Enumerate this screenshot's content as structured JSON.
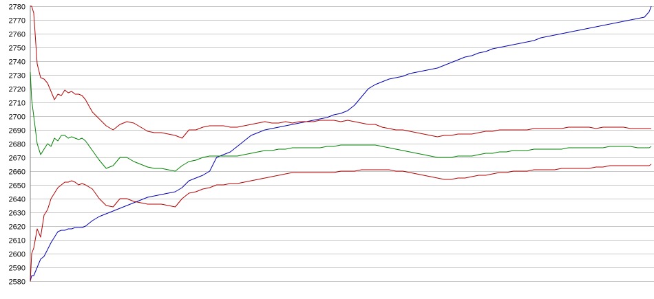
{
  "chart_data": {
    "type": "line",
    "title": "",
    "xlabel": "",
    "ylabel": "",
    "ylim": [
      2580,
      2780
    ],
    "yticks": [
      2580,
      2590,
      2600,
      2610,
      2620,
      2630,
      2640,
      2650,
      2660,
      2670,
      2680,
      2690,
      2700,
      2710,
      2720,
      2730,
      2740,
      2750,
      2760,
      2770,
      2780
    ],
    "grid": true,
    "legend": "none",
    "x": [
      0,
      2,
      5,
      10,
      15,
      20,
      25,
      30,
      35,
      40,
      45,
      50,
      55,
      60,
      65,
      70,
      75,
      80,
      90,
      100,
      110,
      120,
      130,
      140,
      150,
      160,
      170,
      180,
      190,
      200,
      210,
      220,
      230,
      240,
      250,
      260,
      270,
      280,
      290,
      300,
      310,
      320,
      330,
      340,
      350,
      360,
      370,
      380,
      390,
      400,
      410,
      420,
      430,
      440,
      450,
      460,
      470,
      480,
      490,
      500,
      510,
      520,
      530,
      540,
      550,
      560,
      570,
      580,
      590,
      600,
      610,
      620,
      630,
      640,
      650,
      660,
      670,
      680,
      690,
      700,
      710,
      720,
      730,
      740,
      750,
      760,
      770,
      780,
      790,
      800,
      810,
      820,
      830,
      840,
      850,
      860,
      870,
      880,
      890,
      897,
      900
    ],
    "series": [
      {
        "color": "#0000b4",
        "values": [
          2580,
          2584,
          2584,
          2590,
          2596,
          2598,
          2603,
          2608,
          2612,
          2616,
          2617,
          2617,
          2618,
          2618,
          2619,
          2619,
          2619,
          2620,
          2624,
          2627,
          2629,
          2631,
          2633,
          2635,
          2637,
          2639,
          2641,
          2642,
          2643,
          2644,
          2645,
          2648,
          2653,
          2655,
          2657,
          2660,
          2670,
          2672,
          2674,
          2678,
          2682,
          2686,
          2688,
          2690,
          2691,
          2692,
          2693,
          2694,
          2695,
          2696,
          2697,
          2698,
          2699,
          2701,
          2702,
          2704,
          2708,
          2714,
          2720,
          2723,
          2725,
          2727,
          2728,
          2729,
          2731,
          2732,
          2733,
          2734,
          2735,
          2737,
          2739,
          2741,
          2743,
          2744,
          2746,
          2747,
          2749,
          2750,
          2751,
          2752,
          2753,
          2754,
          2755,
          2757,
          2758,
          2759,
          2760,
          2761,
          2762,
          2763,
          2764,
          2765,
          2766,
          2767,
          2768,
          2769,
          2770,
          2771,
          2772,
          2776,
          2780
        ]
      },
      {
        "color": "#b40000",
        "values": [
          2780,
          2780,
          2775,
          2738,
          2728,
          2727,
          2724,
          2718,
          2712,
          2716,
          2715,
          2719,
          2717,
          2718,
          2716,
          2716,
          2715,
          2712,
          2703,
          2698,
          2693,
          2690,
          2694,
          2696,
          2695,
          2692,
          2689,
          2688,
          2688,
          2687,
          2686,
          2684,
          2690,
          2690,
          2692,
          2693,
          2693,
          2693,
          2692,
          2692,
          2693,
          2694,
          2695,
          2696,
          2695,
          2695,
          2696,
          2695,
          2696,
          2696,
          2696,
          2697,
          2697,
          2697,
          2696,
          2697,
          2696,
          2695,
          2694,
          2694,
          2692,
          2691,
          2690,
          2690,
          2689,
          2688,
          2687,
          2686,
          2685,
          2686,
          2686,
          2687,
          2687,
          2687,
          2688,
          2689,
          2689,
          2690,
          2690,
          2690,
          2690,
          2690,
          2691,
          2691,
          2691,
          2691,
          2691,
          2692,
          2692,
          2692,
          2692,
          2691,
          2692,
          2692,
          2692,
          2692,
          2691,
          2691,
          2691,
          2691,
          2691
        ]
      },
      {
        "color": "#008200",
        "values": [
          2732,
          2712,
          2700,
          2680,
          2672,
          2676,
          2680,
          2678,
          2684,
          2682,
          2686,
          2686,
          2684,
          2685,
          2684,
          2683,
          2684,
          2682,
          2675,
          2668,
          2662,
          2664,
          2670,
          2670,
          2667,
          2665,
          2663,
          2662,
          2662,
          2661,
          2660,
          2664,
          2667,
          2668,
          2670,
          2671,
          2671,
          2671,
          2671,
          2671,
          2672,
          2673,
          2674,
          2675,
          2675,
          2676,
          2676,
          2677,
          2677,
          2677,
          2677,
          2677,
          2678,
          2678,
          2679,
          2679,
          2679,
          2679,
          2679,
          2679,
          2678,
          2677,
          2676,
          2675,
          2674,
          2673,
          2672,
          2671,
          2670,
          2670,
          2670,
          2671,
          2671,
          2671,
          2672,
          2673,
          2673,
          2674,
          2674,
          2675,
          2675,
          2675,
          2676,
          2676,
          2676,
          2676,
          2676,
          2677,
          2677,
          2677,
          2677,
          2677,
          2677,
          2678,
          2678,
          2678,
          2678,
          2677,
          2677,
          2677,
          2678
        ]
      },
      {
        "color": "#b40000",
        "values": [
          2580,
          2600,
          2604,
          2618,
          2612,
          2628,
          2632,
          2640,
          2644,
          2648,
          2650,
          2652,
          2652,
          2653,
          2652,
          2650,
          2651,
          2650,
          2647,
          2640,
          2635,
          2634,
          2640,
          2640,
          2638,
          2637,
          2636,
          2636,
          2636,
          2635,
          2634,
          2640,
          2644,
          2645,
          2647,
          2648,
          2650,
          2650,
          2651,
          2651,
          2652,
          2653,
          2654,
          2655,
          2656,
          2657,
          2658,
          2659,
          2659,
          2659,
          2659,
          2659,
          2659,
          2659,
          2660,
          2660,
          2660,
          2661,
          2661,
          2661,
          2661,
          2661,
          2660,
          2660,
          2659,
          2658,
          2657,
          2656,
          2655,
          2654,
          2654,
          2655,
          2655,
          2656,
          2657,
          2657,
          2658,
          2659,
          2659,
          2660,
          2660,
          2660,
          2661,
          2661,
          2661,
          2661,
          2662,
          2662,
          2662,
          2662,
          2662,
          2663,
          2663,
          2664,
          2664,
          2664,
          2664,
          2664,
          2664,
          2664,
          2665
        ]
      }
    ]
  }
}
